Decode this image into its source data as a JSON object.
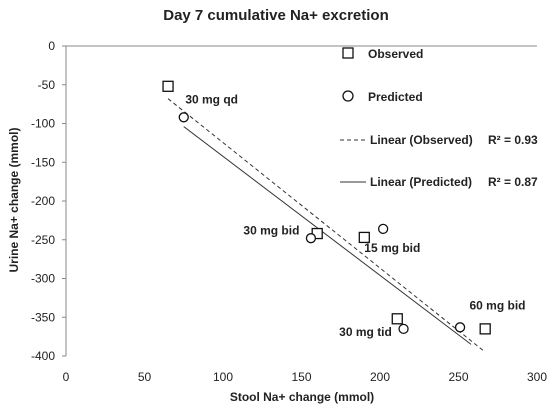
{
  "chart_data": {
    "type": "scatter",
    "title": "Day 7 cumulative Na+ excretion",
    "xlabel": "Stool Na+ change (mmol)",
    "ylabel": "Urine Na+ change (mmol)",
    "xlim": [
      0,
      300
    ],
    "ylim": [
      -400,
      0
    ],
    "xticks": [
      0,
      50,
      100,
      150,
      200,
      250,
      300
    ],
    "yticks": [
      0,
      -50,
      -100,
      -150,
      -200,
      -250,
      -300,
      -350,
      -400
    ],
    "grid": false,
    "legend_position": "right",
    "series": [
      {
        "name": "Observed",
        "marker": "square",
        "points": [
          {
            "x": 65,
            "y": -52
          },
          {
            "x": 160,
            "y": -242
          },
          {
            "x": 190,
            "y": -247
          },
          {
            "x": 211,
            "y": -352
          },
          {
            "x": 267,
            "y": -365
          }
        ]
      },
      {
        "name": "Predicted",
        "marker": "circle",
        "points": [
          {
            "x": 75,
            "y": -92
          },
          {
            "x": 156,
            "y": -248
          },
          {
            "x": 202,
            "y": -236
          },
          {
            "x": 215,
            "y": -365
          },
          {
            "x": 251,
            "y": -363
          }
        ]
      }
    ],
    "trendlines": [
      {
        "name": "Linear (Observed)",
        "style": "dashed",
        "r2_label": "R² = 0.93",
        "x": [
          65,
          267
        ],
        "y": [
          -68,
          -395
        ]
      },
      {
        "name": "Linear (Predicted)",
        "style": "solid",
        "r2_label": "R² = 0.87",
        "x": [
          75,
          258
        ],
        "y": [
          -104,
          -385
        ]
      }
    ],
    "annotations": [
      {
        "text": "30 mg qd",
        "x": 76,
        "y": -74
      },
      {
        "text": "30 mg bid",
        "x": 113,
        "y": -243
      },
      {
        "text": "15 mg bid",
        "x": 190,
        "y": -266
      },
      {
        "text": "30 mg tid",
        "x": 174,
        "y": -374
      },
      {
        "text": "60 mg bid",
        "x": 257,
        "y": -340
      }
    ]
  }
}
